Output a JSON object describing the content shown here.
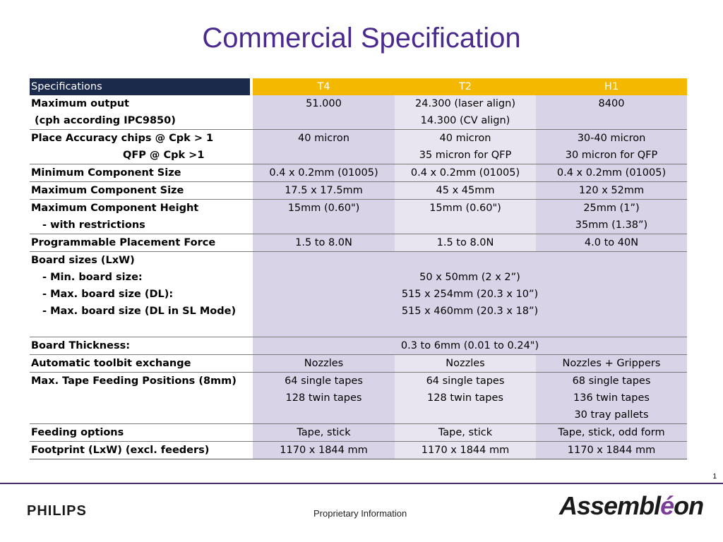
{
  "title": "Commercial Specification",
  "table": {
    "headers": [
      "Specifications",
      "T4",
      "T2",
      "H1"
    ],
    "rows": [
      {
        "label": [
          "Maximum output",
          " (cph according IPC9850)"
        ],
        "t4": [
          "51.000"
        ],
        "t2": [
          "24.300 (laser align)",
          "14.300 (CV align)"
        ],
        "h1": [
          "8400"
        ]
      },
      {
        "label": [
          "Place Accuracy chips @ Cpk > 1",
          "QFP @ Cpk >1"
        ],
        "t4": [
          "40 micron"
        ],
        "t2": [
          "40 micron",
          "35 micron for QFP"
        ],
        "h1": [
          "30-40 micron",
          "30 micron for QFP"
        ]
      },
      {
        "label": [
          "Minimum Component Size"
        ],
        "t4": [
          "0.4 x 0.2mm (01005)"
        ],
        "t2": [
          "0.4 x 0.2mm (01005)"
        ],
        "h1": [
          "0.4 x 0.2mm (01005)"
        ]
      },
      {
        "label": [
          "Maximum Component Size"
        ],
        "t4": [
          "17.5 x 17.5mm"
        ],
        "t2": [
          "45 x 45mm"
        ],
        "h1": [
          "120 x 52mm"
        ]
      },
      {
        "label": [
          "Maximum Component Height",
          "-  with restrictions"
        ],
        "t4": [
          "15mm (0.60\")"
        ],
        "t2": [
          "15mm (0.60\")"
        ],
        "h1": [
          "25mm (1”)",
          "35mm (1.38”)"
        ]
      },
      {
        "label": [
          "Programmable Placement Force"
        ],
        "t4": [
          "1.5 to 8.0N"
        ],
        "t2": [
          "1.5 to 8.0N"
        ],
        "h1": [
          "4.0 to 40N"
        ]
      },
      {
        "label": [
          "Board sizes (LxW)",
          "- Min. board size:",
          "- Max. board size (DL):",
          "- Max. board size (DL in SL Mode)"
        ],
        "merged": [
          "",
          "50 x 50mm (2 x 2”)",
          "515 x 254mm  (20.3 x 10”)",
          "515 x 460mm (20.3 x 18”)"
        ]
      },
      {
        "label": [
          "Board Thickness:"
        ],
        "merged": [
          "0.3 to 6mm  (0.01 to 0.24\")"
        ]
      },
      {
        "label": [
          "Automatic toolbit exchange"
        ],
        "t4": [
          "Nozzles"
        ],
        "t2": [
          "Nozzles"
        ],
        "h1": [
          "Nozzles + Grippers"
        ]
      },
      {
        "label": [
          "Max. Tape Feeding Positions (8mm)"
        ],
        "t4": [
          "64 single tapes",
          "128 twin tapes"
        ],
        "t2": [
          "64 single tapes",
          "128 twin tapes"
        ],
        "h1": [
          "68 single tapes",
          "136 twin tapes",
          "30 tray pallets"
        ]
      },
      {
        "label": [
          "Feeding options"
        ],
        "t4": [
          "Tape, stick"
        ],
        "t2": [
          "Tape, stick"
        ],
        "h1": [
          "Tape, stick, odd form"
        ]
      },
      {
        "label": [
          "Footprint (LxW) (excl. feeders)"
        ],
        "t4": [
          "1170 x 1844 mm"
        ],
        "t2": [
          "1170 x 1844 mm"
        ],
        "h1": [
          "1170 x 1844 mm"
        ]
      }
    ]
  },
  "footer": {
    "page_number": "1",
    "left_logo": "PHILIPS",
    "center_text": "Proprietary Information",
    "right_logo_pre": "Assembl",
    "right_logo_accent": "é",
    "right_logo_post": "on"
  },
  "colors": {
    "title": "#4b2a8f",
    "header_spec_bg": "#1b2a4a",
    "header_col_bg": "#f5b800",
    "cell_dark": "#d9d3e8",
    "cell_light": "#e8e5f1"
  }
}
